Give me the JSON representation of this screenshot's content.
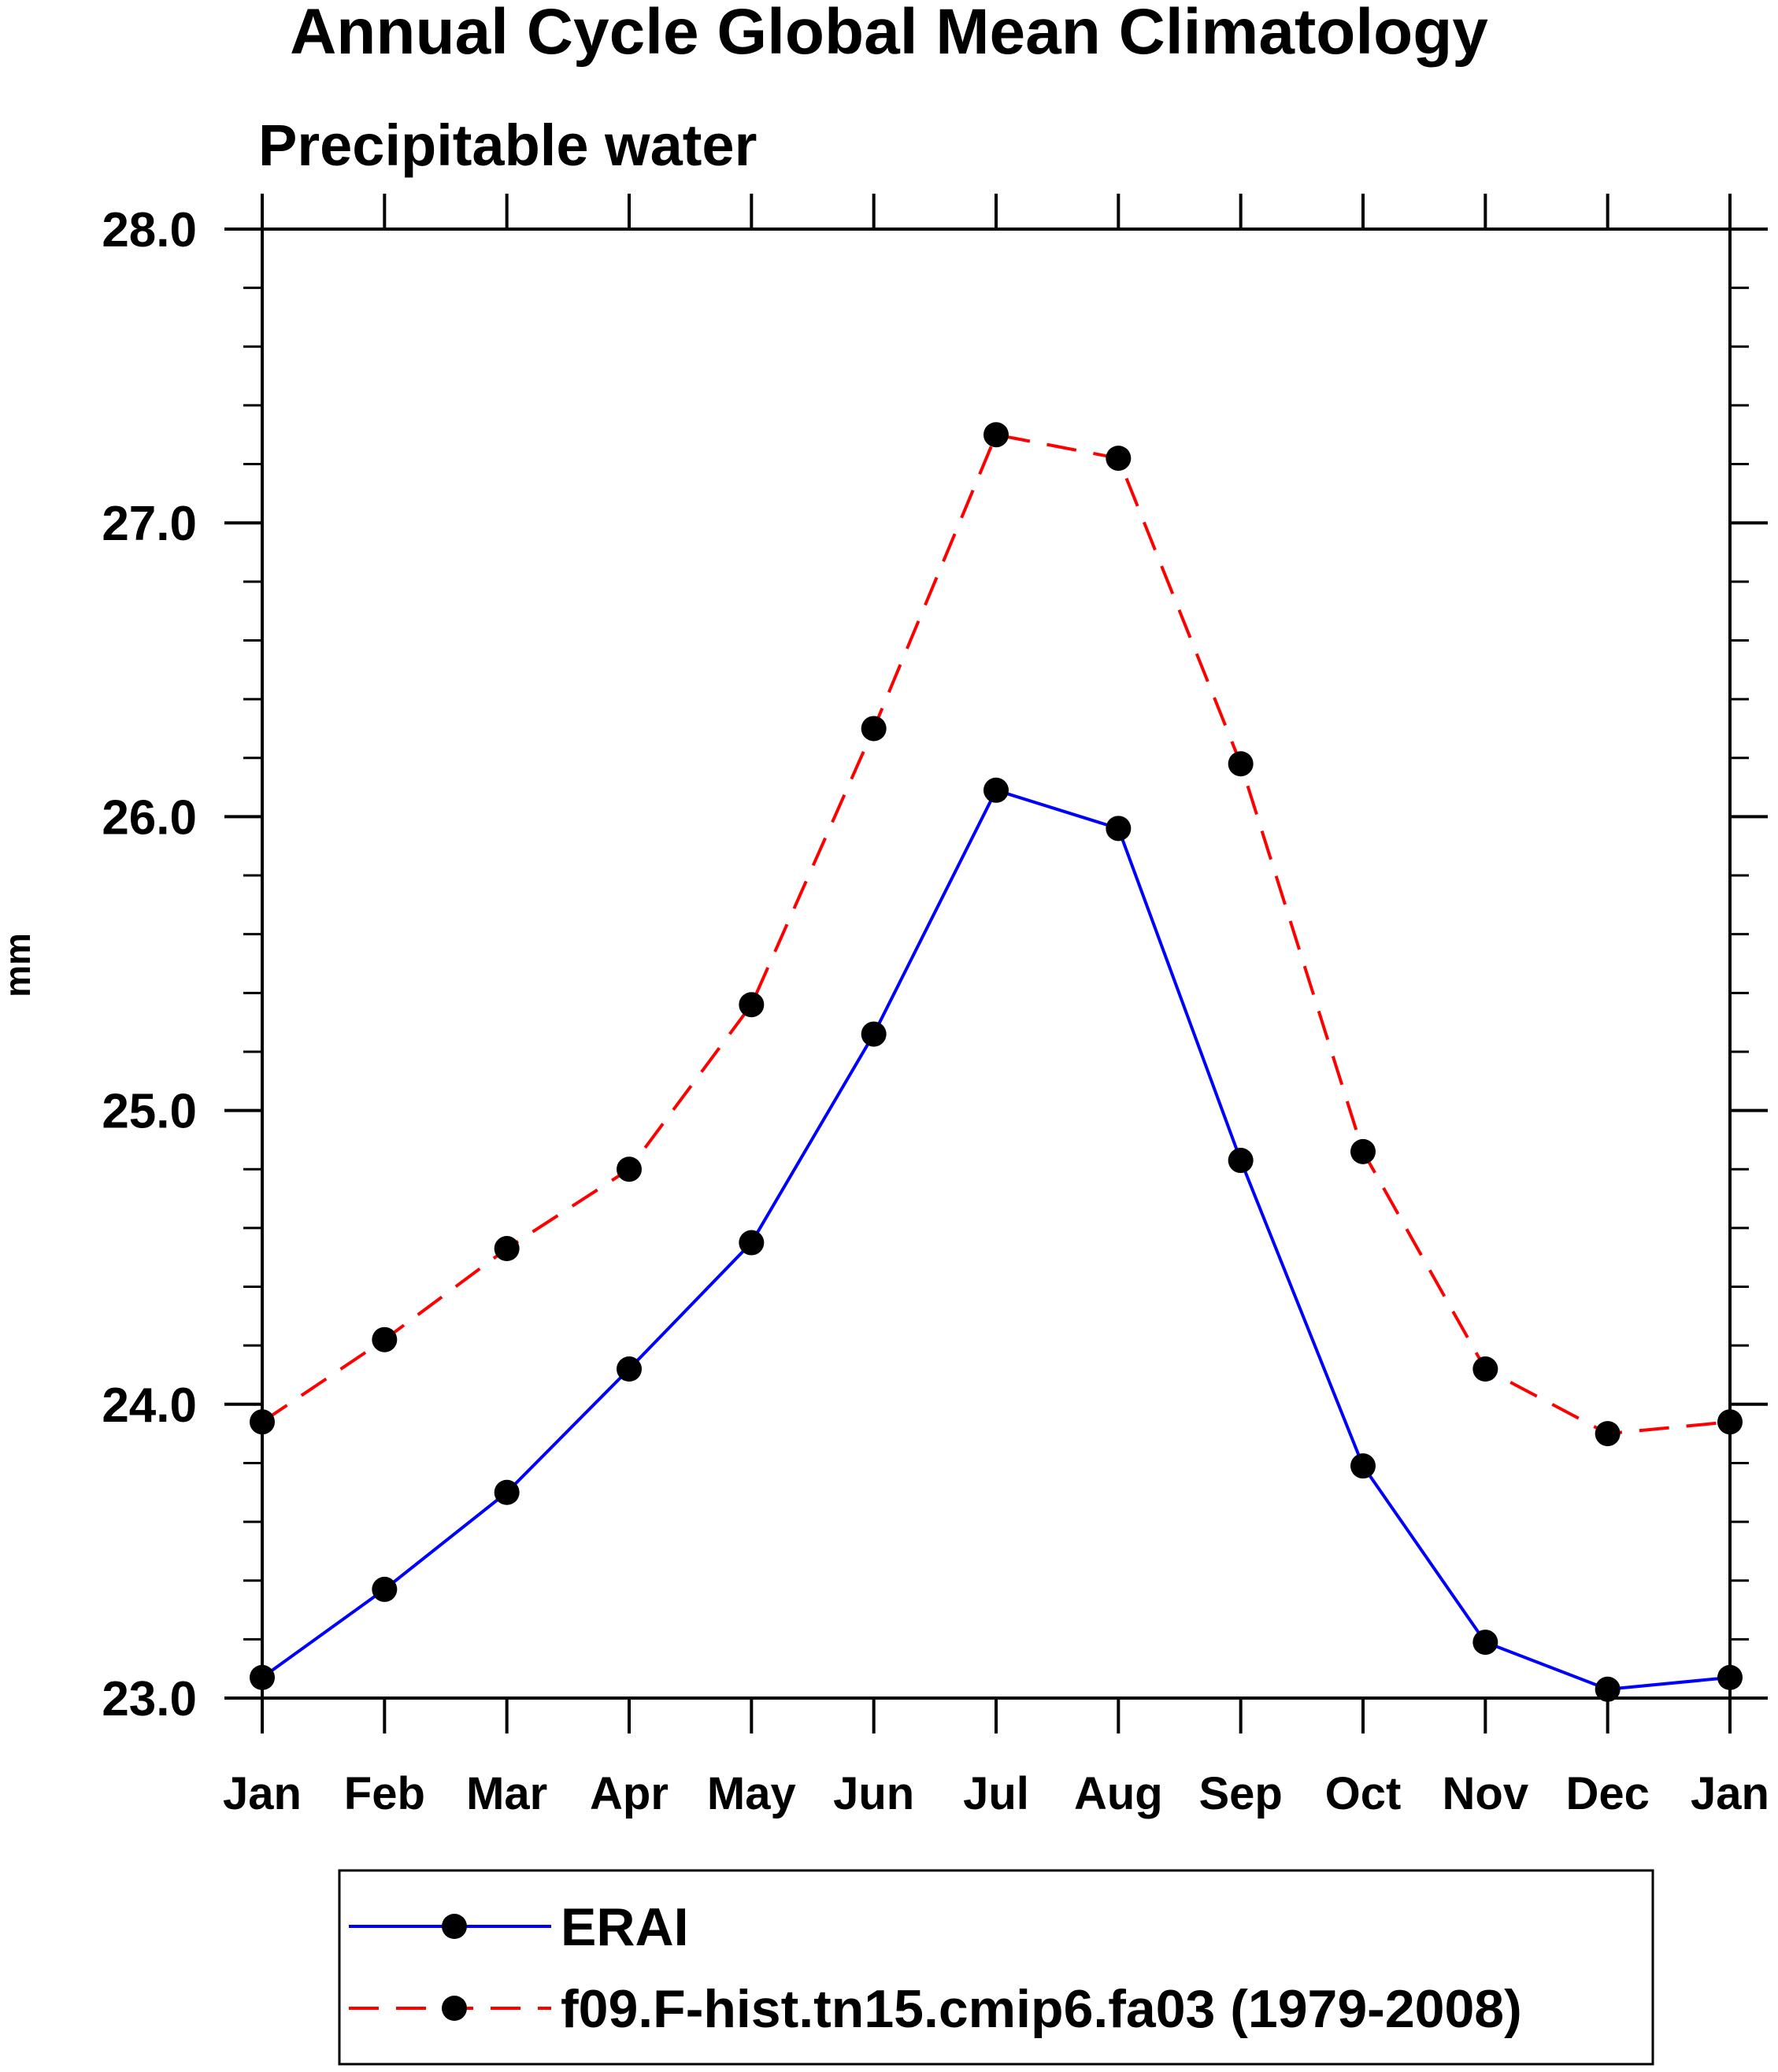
{
  "chart_data": {
    "type": "line",
    "title": "Annual Cycle Global Mean Climatology",
    "subtitle": "Precipitable water",
    "xlabel": "",
    "ylabel": "mm",
    "categories": [
      "Jan",
      "Feb",
      "Mar",
      "Apr",
      "May",
      "Jun",
      "Jul",
      "Aug",
      "Sep",
      "Oct",
      "Nov",
      "Dec",
      "Jan"
    ],
    "ylim": [
      23.0,
      28.0
    ],
    "yticks": [
      23.0,
      24.0,
      25.0,
      26.0,
      27.0,
      28.0
    ],
    "ytick_labels": [
      "23.0",
      "24.0",
      "25.0",
      "26.0",
      "27.0",
      "28.0"
    ],
    "grid": false,
    "legend_position": "bottom",
    "series": [
      {
        "name": "ERAI",
        "color": "#0000ff",
        "line_style": "solid",
        "marker": "filled-circle",
        "values": [
          23.07,
          23.37,
          23.7,
          24.12,
          24.55,
          25.26,
          26.09,
          25.96,
          24.83,
          23.79,
          23.19,
          23.03,
          23.07
        ]
      },
      {
        "name": "f09.F-hist.tn15.cmip6.fa03 (1979-2008)",
        "color": "#ff0000",
        "line_style": "dashed",
        "marker": "filled-circle",
        "values": [
          23.94,
          24.22,
          24.53,
          24.8,
          25.36,
          26.3,
          27.3,
          27.22,
          26.18,
          24.86,
          24.12,
          23.9,
          23.94
        ]
      }
    ]
  }
}
